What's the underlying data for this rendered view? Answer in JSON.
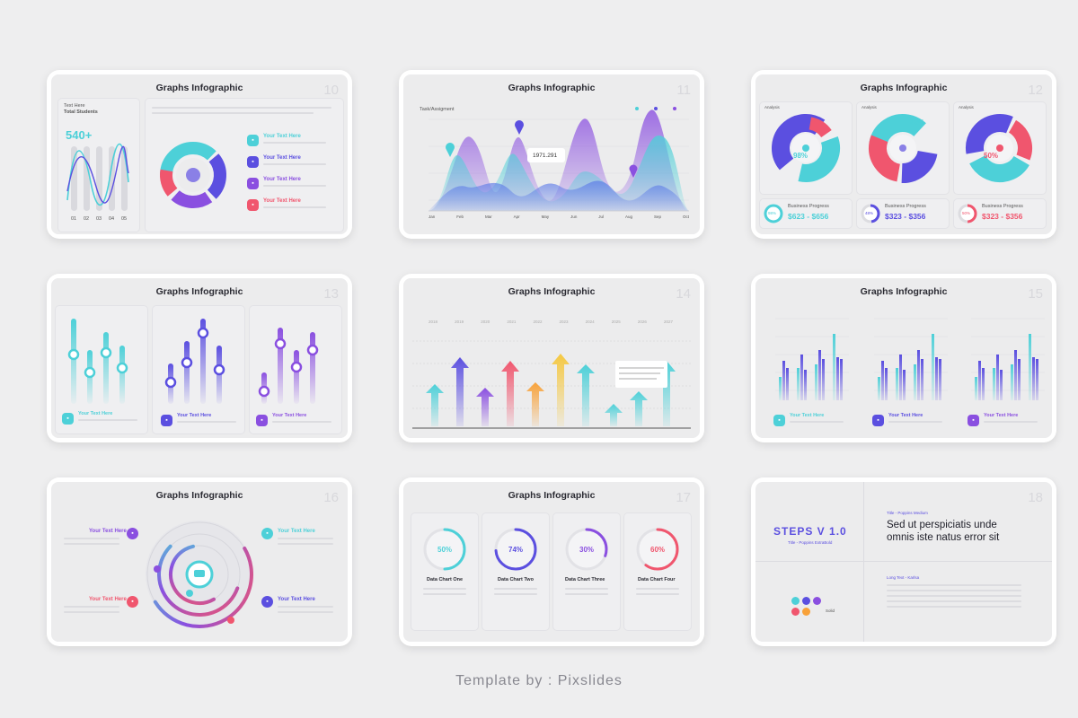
{
  "slides": [
    {
      "title": "Graphs Infographic",
      "number": "10",
      "text_here": "Text Here",
      "total_students": "Total Students",
      "stat": "540+",
      "bar_labels": [
        "01",
        "02",
        "03",
        "04",
        "05"
      ],
      "items": [
        "Your Text Here",
        "Your Text Here",
        "Your Text Here",
        "Your Text Here"
      ]
    },
    {
      "title": "Graphs Infographic",
      "number": "11",
      "subtitle": "Task/Assigment",
      "value_label": "1971.291",
      "months": [
        "Jan",
        "Feb",
        "Mar",
        "Apr",
        "May",
        "Jun",
        "Jul",
        "Aug",
        "Sep",
        "Oct"
      ]
    },
    {
      "title": "Graphs Infographic",
      "number": "12",
      "analysis_label": "Analysis",
      "panels": [
        {
          "percent": "98%",
          "progress_label": "Business Progress",
          "range": "$623 - $656",
          "ring": "98%",
          "color": "#4dd0d8"
        },
        {
          "percent": "48%",
          "progress_label": "Business Progress",
          "range": "$323 - $356",
          "ring": "48%",
          "color": "#5b4fe0"
        },
        {
          "percent": "50%",
          "progress_label": "Business Progress",
          "range": "$323 - $356",
          "ring": "50%",
          "color": "#f0566e"
        }
      ]
    },
    {
      "title": "Graphs Infographic",
      "number": "13",
      "items": [
        "Your Text Here",
        "Your Text Here",
        "Your Text Here"
      ]
    },
    {
      "title": "Graphs Infographic",
      "number": "14",
      "years": [
        "2018",
        "2019",
        "2020",
        "2021",
        "2022",
        "2023",
        "2024",
        "2025",
        "2026",
        "2027"
      ]
    },
    {
      "title": "Graphs Infographic",
      "number": "15",
      "items": [
        "Your Text Here",
        "Your Text Here",
        "Your Text Here"
      ]
    },
    {
      "title": "Graphs Infographic",
      "number": "16",
      "items": [
        "Your Text Here",
        "Your Text Here",
        "Your Text Here",
        "Your Text Here"
      ]
    },
    {
      "title": "Graphs Infographic",
      "number": "17",
      "charts": [
        {
          "percent": "50%",
          "label": "Data Chart One",
          "color": "#4dd0d8"
        },
        {
          "percent": "74%",
          "label": "Data Chart Two",
          "color": "#5b4fe0"
        },
        {
          "percent": "30%",
          "label": "Data Chart Three",
          "color": "#8a4fe0"
        },
        {
          "percent": "60%",
          "label": "Data Chart Four",
          "color": "#f0566e"
        }
      ]
    },
    {
      "title": "STEPS V 1.0",
      "number": "18",
      "title_caption": "Title - Poppins ExtraBold",
      "kicker": "Title - Poppins Medium",
      "heading_line1": "Sed ut perspiciatis unde",
      "heading_line2": "omnis iste natus error sit",
      "body_caption": "Long Text - Karlsa",
      "palette_label": "Solid"
    }
  ],
  "footer": "Template by : Pixslides",
  "colors": {
    "cyan": "#4dd0d8",
    "indigo": "#5b4fe0",
    "purple": "#8a4fe0",
    "pink": "#f0566e",
    "orange": "#f8a23a",
    "yellow": "#f5c842"
  }
}
